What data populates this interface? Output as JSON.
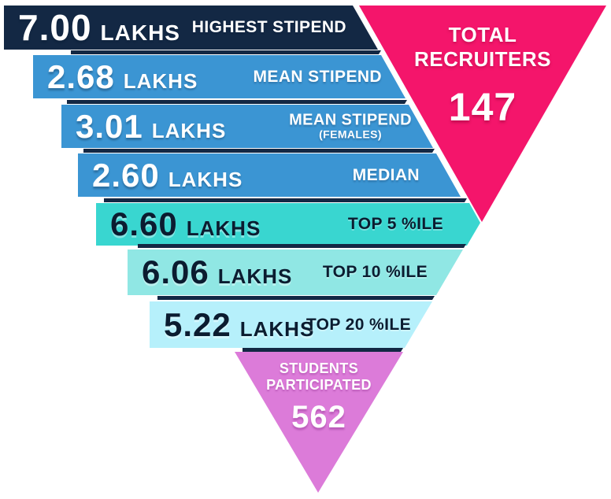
{
  "chart_data": {
    "type": "funnel",
    "description": "Inverted-triangle internship stipend statistics infographic",
    "unit_note": "All stipend figures in LAKHS",
    "items": [
      {
        "value": "7.00",
        "unit": "LAKHS",
        "label": "HIGHEST STIPEND",
        "numeric": 7.0
      },
      {
        "value": "2.68",
        "unit": "LAKHS",
        "label": "MEAN STIPEND",
        "numeric": 2.68
      },
      {
        "value": "3.01",
        "unit": "LAKHS",
        "label": "MEAN STIPEND",
        "sublabel": "(FEMALES)",
        "numeric": 3.01
      },
      {
        "value": "2.60",
        "unit": "LAKHS",
        "label": "MEDIAN",
        "numeric": 2.6
      },
      {
        "value": "6.60",
        "unit": "LAKHS",
        "label": "TOP 5 %ILE",
        "numeric": 6.6
      },
      {
        "value": "6.06",
        "unit": "LAKHS",
        "label": "TOP 10 %ILE",
        "numeric": 6.06
      },
      {
        "value": "5.22",
        "unit": "LAKHS",
        "label": "TOP 20 %ILE",
        "numeric": 5.22
      }
    ],
    "callouts": {
      "recruiters": {
        "label_line1": "TOTAL",
        "label_line2": "RECRUITERS",
        "value": "147",
        "numeric": 147
      },
      "students": {
        "label_line1": "STUDENTS",
        "label_line2": "PARTICIPATED",
        "value": "562",
        "numeric": 562
      }
    },
    "colors": {
      "navy": "#132844",
      "blue": "#3B95D3",
      "teal": "#39D6D0",
      "teal_light": "#90E7E4",
      "cyan_pale": "#B6F0FB",
      "pink": "#F4156B",
      "purple": "#DC7BD9",
      "dark_text": "#0B1C30",
      "light_text": "#FFFFFF"
    },
    "legend_position": "none",
    "grid": false
  }
}
